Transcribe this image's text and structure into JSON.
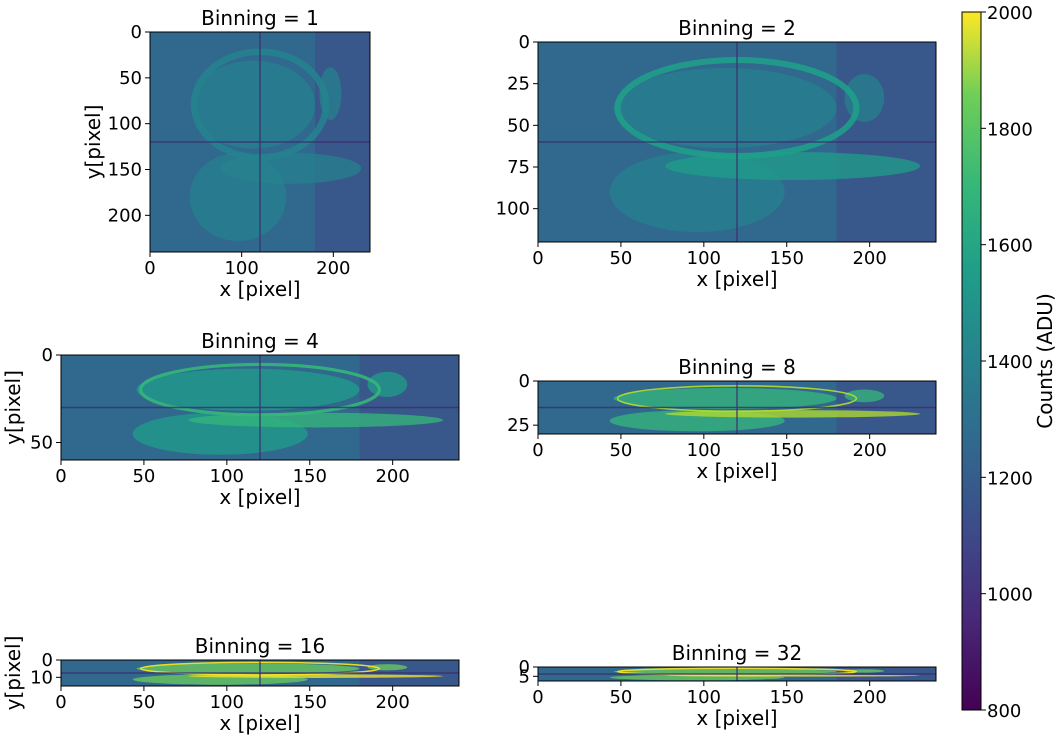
{
  "figure": {
    "colorbar": {
      "label": "Counts (ADU)",
      "min": 800,
      "max": 2000,
      "ticks": [
        800,
        1000,
        1200,
        1400,
        1600,
        1800,
        2000
      ],
      "colormap": "viridis"
    }
  },
  "chart_data": [
    {
      "type": "heatmap",
      "title": "Binning = 1",
      "xlabel": "x [pixel]",
      "ylabel": "y[pixel]",
      "xlim": [
        0,
        240
      ],
      "ylim": [
        0,
        240
      ],
      "xticks": [
        0,
        100,
        200
      ],
      "yticks": [
        0,
        50,
        100,
        150,
        200
      ],
      "binning": 1
    },
    {
      "type": "heatmap",
      "title": "Binning = 2",
      "xlabel": "x [pixel]",
      "ylabel": "",
      "xlim": [
        0,
        240
      ],
      "ylim": [
        0,
        120
      ],
      "xticks": [
        0,
        50,
        100,
        150,
        200
      ],
      "yticks": [
        0,
        25,
        50,
        75,
        100
      ],
      "binning": 2
    },
    {
      "type": "heatmap",
      "title": "Binning = 4",
      "xlabel": "x [pixel]",
      "ylabel": "y[pixel]",
      "xlim": [
        0,
        240
      ],
      "ylim": [
        0,
        60
      ],
      "xticks": [
        0,
        50,
        100,
        150,
        200
      ],
      "yticks": [
        0,
        50
      ],
      "binning": 4
    },
    {
      "type": "heatmap",
      "title": "Binning = 8",
      "xlabel": "x [pixel]",
      "ylabel": "",
      "xlim": [
        0,
        240
      ],
      "ylim": [
        0,
        30
      ],
      "xticks": [
        0,
        50,
        100,
        150,
        200
      ],
      "yticks": [
        0,
        25
      ],
      "binning": 8
    },
    {
      "type": "heatmap",
      "title": "Binning = 16",
      "xlabel": "x [pixel]",
      "ylabel": "y[pixel]",
      "xlim": [
        0,
        240
      ],
      "ylim": [
        0,
        15
      ],
      "xticks": [
        0,
        50,
        100,
        150,
        200
      ],
      "yticks": [
        0,
        10
      ],
      "binning": 16
    },
    {
      "type": "heatmap",
      "title": "Binning = 32",
      "xlabel": "x [pixel]",
      "ylabel": "",
      "xlim": [
        0,
        240
      ],
      "ylim": [
        0,
        7.5
      ],
      "xticks": [
        0,
        50,
        100,
        150,
        200
      ],
      "yticks": [
        0,
        5
      ],
      "binning": 32
    }
  ]
}
